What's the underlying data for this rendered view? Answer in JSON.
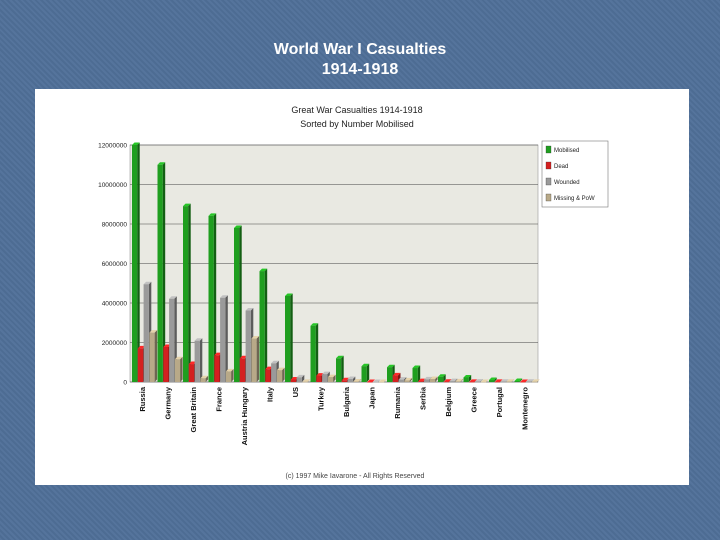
{
  "slide": {
    "title_line1": "World War I Casualties",
    "title_line2": "1914-1918",
    "background_color": "#4f6f98"
  },
  "chart_data": {
    "type": "bar",
    "title": "Great War Casualties 1914-1918",
    "subtitle": "Sorted by Number Mobilised",
    "categories": [
      "Russia",
      "Germany",
      "Great Britain",
      "France",
      "Austria Hungary",
      "Italy",
      "US",
      "Turkey",
      "Bulgaria",
      "Japan",
      "Rumania",
      "Serbia",
      "Belgium",
      "Greece",
      "Portugal",
      "Montenegro"
    ],
    "series": [
      {
        "name": "Mobilised",
        "color": "#1f9e1f",
        "values": [
          12000000,
          11000000,
          8904467,
          8410000,
          7800000,
          5615000,
          4355000,
          2850000,
          1200000,
          800000,
          750000,
          707343,
          267000,
          230000,
          100000,
          50000
        ]
      },
      {
        "name": "Dead",
        "color": "#d42020",
        "values": [
          1700000,
          1773700,
          908371,
          1357800,
          1200000,
          650000,
          126000,
          325000,
          87500,
          300,
          335706,
          45000,
          13716,
          5000,
          7222,
          3000
        ]
      },
      {
        "name": "Wounded",
        "color": "#9a9a9a",
        "values": [
          4950000,
          4216058,
          2090212,
          4266000,
          3620000,
          947000,
          234300,
          400000,
          152390,
          907,
          120000,
          133148,
          44686,
          21000,
          13751,
          10000
        ]
      },
      {
        "name": "Missing & PoW",
        "color": "#b8a988",
        "values": [
          2500000,
          1152800,
          191652,
          537000,
          2200000,
          600000,
          4500,
          250000,
          27029,
          3,
          80000,
          152958,
          34659,
          1000,
          12318,
          7000
        ]
      }
    ],
    "ylim": [
      0,
      12000000
    ],
    "yticks": [
      0,
      2000000,
      4000000,
      6000000,
      8000000,
      10000000,
      12000000
    ],
    "ytick_labels": [
      "0",
      "2000000",
      "4000000",
      "6000000",
      "8000000",
      "10000000",
      "12000000"
    ],
    "legend_position": "right",
    "grid": true,
    "xlabel": "",
    "ylabel": "",
    "footer": "(c) 1997 Mike Iavarone - All Rights Reserved"
  }
}
